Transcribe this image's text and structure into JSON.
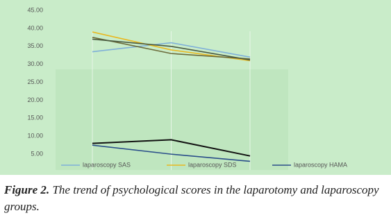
{
  "chart_data": {
    "type": "line",
    "categories": [
      null,
      null,
      null
    ],
    "series": [
      {
        "name": "laparoscopy SAS",
        "color": "#7fb0d8",
        "values": [
          33.5,
          36,
          32
        ]
      },
      {
        "name": "laparoscopy SDS",
        "color": "#e8b820",
        "values": [
          39,
          34,
          31
        ]
      },
      {
        "color": "#6b6b3a",
        "values": [
          37.5,
          33,
          31.5
        ]
      },
      {
        "color": "#4a5a40",
        "values": [
          37,
          35,
          31.2
        ]
      },
      {
        "color": "#111111",
        "values": [
          8,
          9,
          4.5
        ]
      },
      {
        "name": "laparoscopy HAMA",
        "color": "#2a4e8a",
        "values": [
          7.5,
          5,
          3
        ]
      }
    ],
    "ylim": [
      0,
      45
    ],
    "yticks": [
      {
        "value": 5,
        "label": "5.00"
      },
      {
        "value": 10,
        "label": "10.00"
      },
      {
        "value": 15,
        "label": "15.00"
      },
      {
        "value": 20,
        "label": "20.00"
      },
      {
        "value": 25,
        "label": "25.00"
      },
      {
        "value": 30,
        "label": "30.00"
      },
      {
        "value": 35,
        "label": "35.00"
      },
      {
        "value": 40,
        "label": "40.00"
      },
      {
        "value": 45,
        "label": "45.00"
      }
    ],
    "grid": false
  },
  "caption": {
    "label": "Figure 2.",
    "text": "The trend of psychological scores in the laparotomy and laparoscopy groups."
  }
}
